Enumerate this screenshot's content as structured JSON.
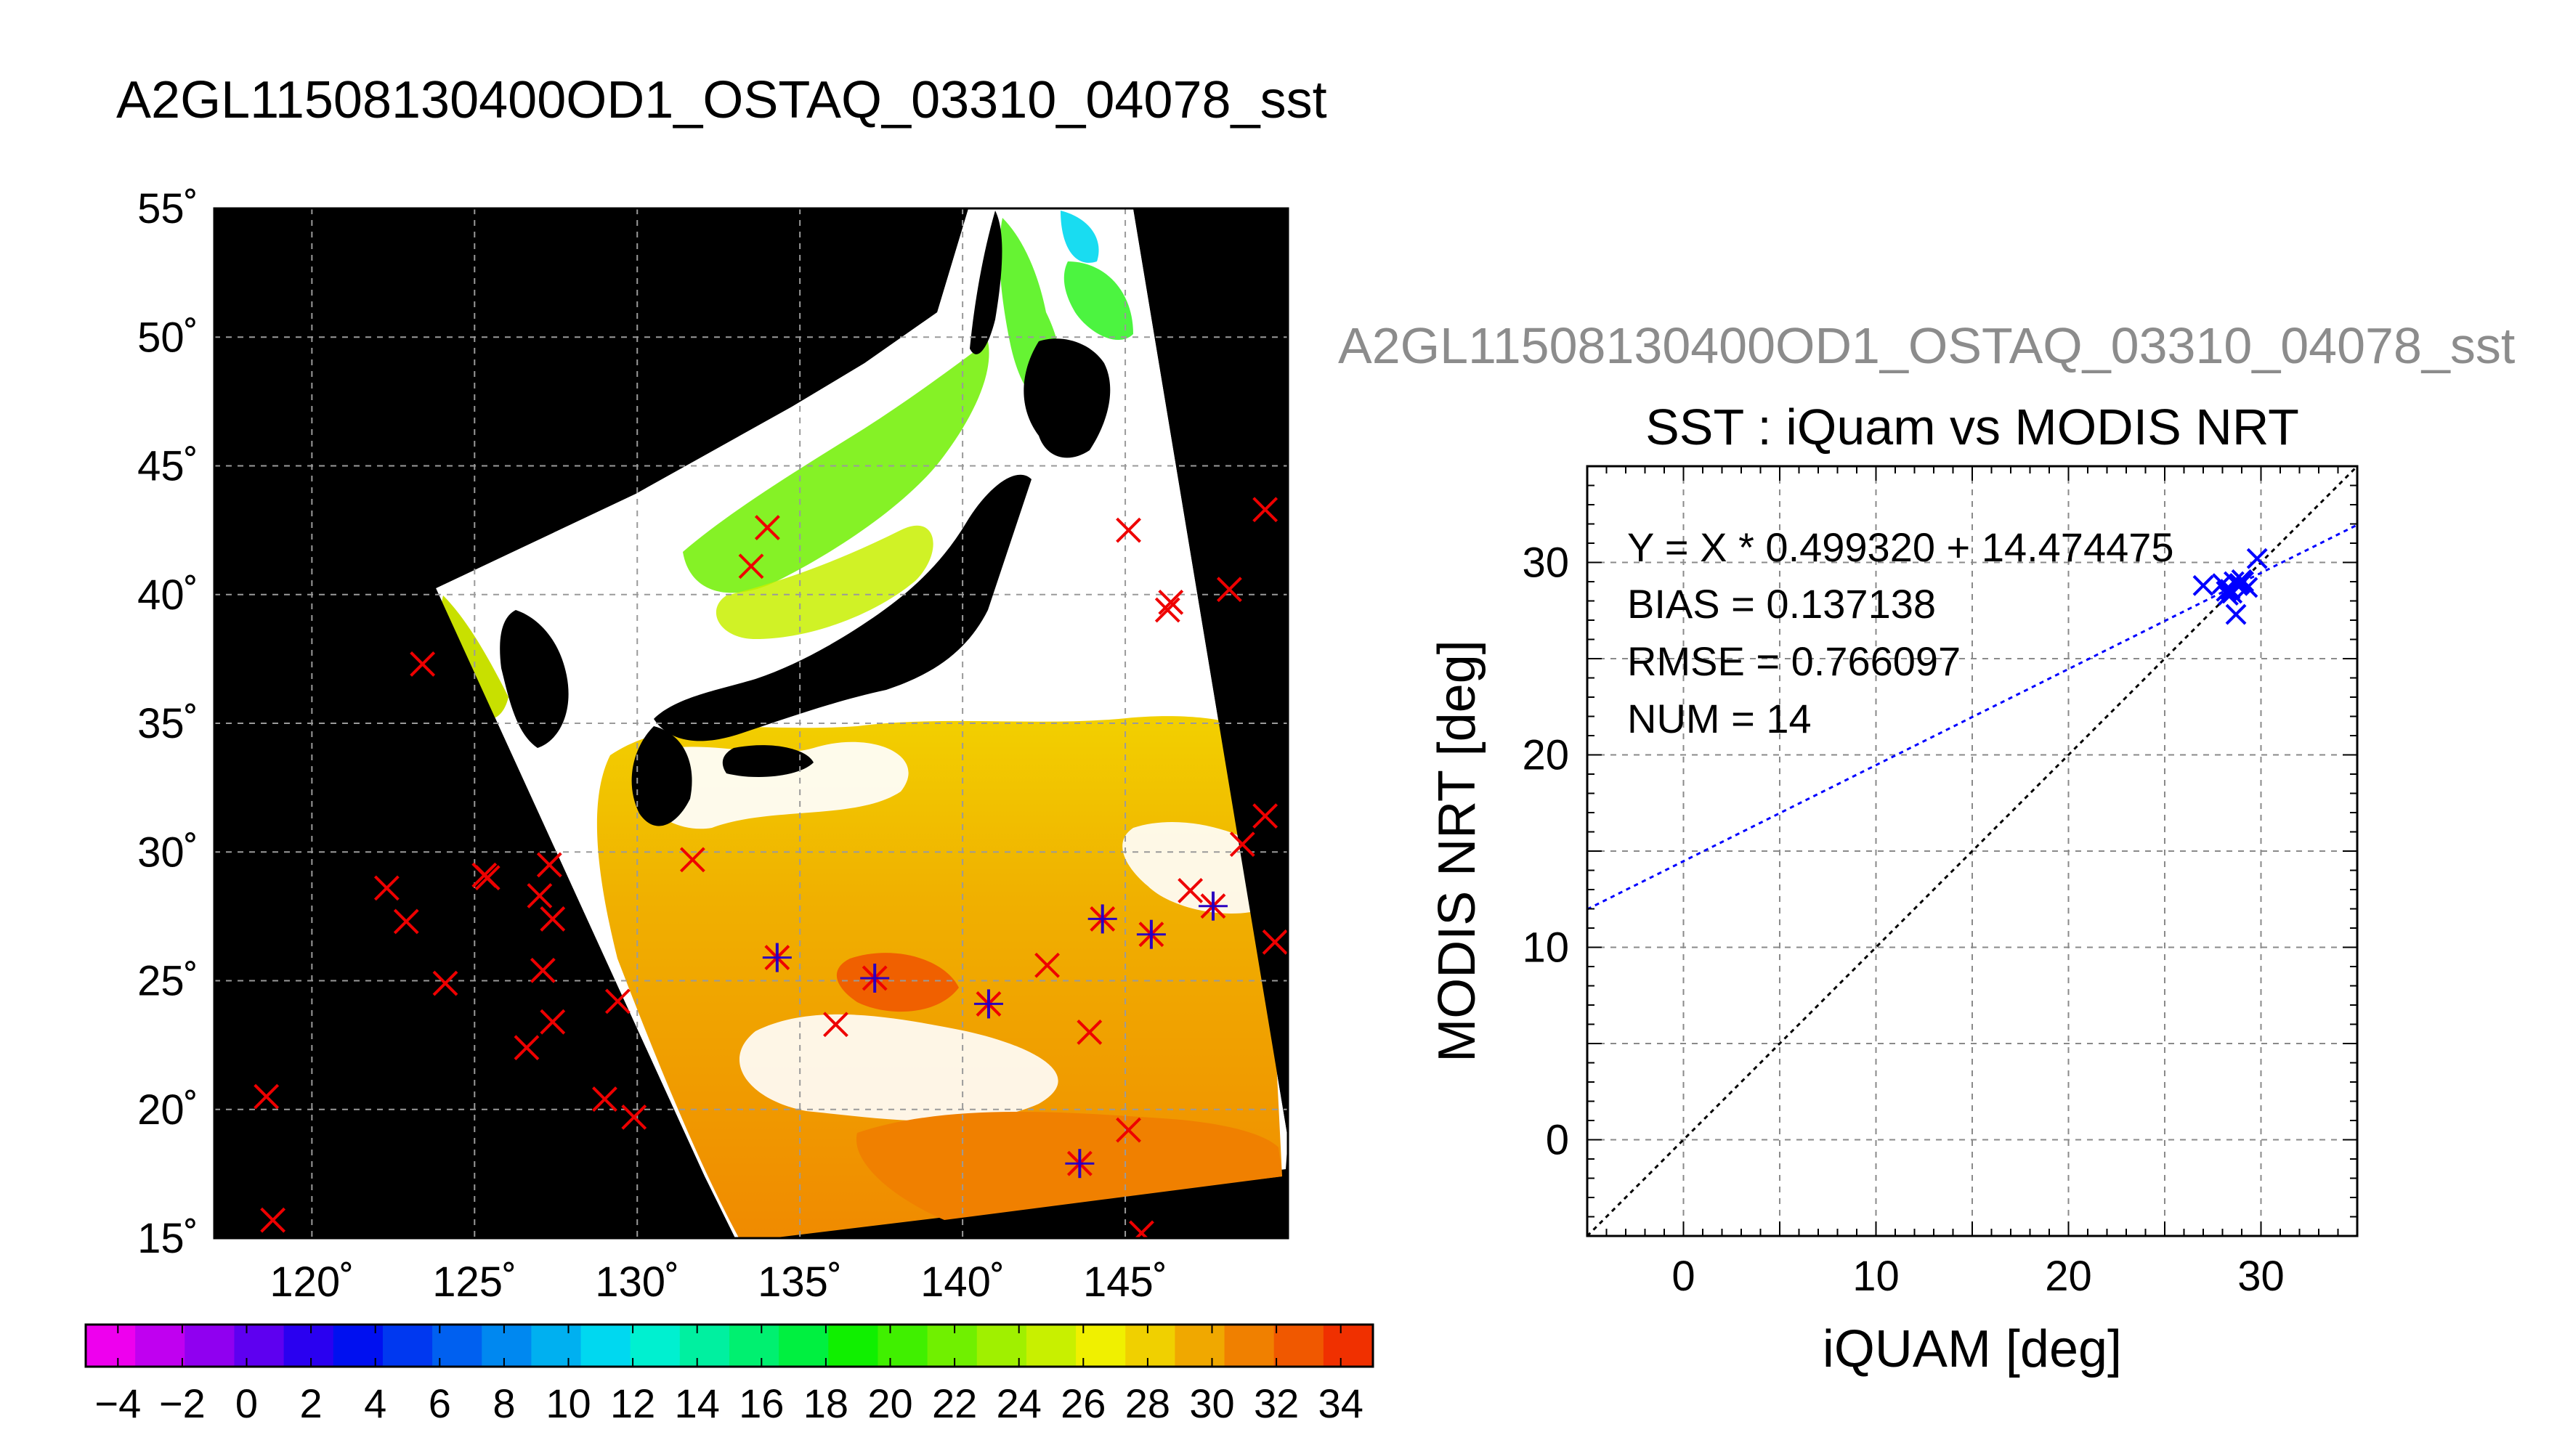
{
  "page": {
    "main_title": "A2GL11508130400OD1_OSTAQ_03310_04078_sst",
    "secondary_title": "A2GL11508130400OD1_OSTAQ_03310_04078_sst"
  },
  "chart_data": [
    {
      "type": "map",
      "title": "A2GL11508130400OD1_OSTAQ_03310_04078_sst",
      "lon_range": [
        117,
        150
      ],
      "lat_range": [
        15,
        55
      ],
      "lon_ticks": [
        "120˚",
        "125˚",
        "130˚",
        "135˚",
        "140˚",
        "145˚"
      ],
      "lat_ticks": [
        "55˚",
        "50˚",
        "45˚",
        "40˚",
        "35˚",
        "30˚",
        "25˚",
        "20˚",
        "15˚"
      ],
      "grid": true,
      "colorbar": {
        "range": [
          -5,
          35
        ],
        "tick_labels": [
          "−4",
          "−2",
          "0",
          "2",
          "4",
          "6",
          "8",
          "10",
          "12",
          "14",
          "16",
          "18",
          "20",
          "22",
          "24",
          "26",
          "28",
          "30",
          "32",
          "34"
        ],
        "colors": [
          "#ee00ee",
          "#c000f0",
          "#9000f0",
          "#5e00f0",
          "#2a00f0",
          "#0010f0",
          "#0038f0",
          "#0060f0",
          "#0088f0",
          "#00b0f0",
          "#00d8f0",
          "#00f0d0",
          "#00f0a0",
          "#00f070",
          "#00f040",
          "#10f000",
          "#40f000",
          "#70f000",
          "#a0f000",
          "#c8f000",
          "#f0f000",
          "#f0d000",
          "#f0a800",
          "#f08000",
          "#f05800",
          "#f03000"
        ]
      },
      "markers": {
        "red_x": [
          [
            118.6,
            20.5
          ],
          [
            118.8,
            15.7
          ],
          [
            122.3,
            28.6
          ],
          [
            122.9,
            27.3
          ],
          [
            123.4,
            37.3
          ],
          [
            124.1,
            24.9
          ],
          [
            125.3,
            29.1
          ],
          [
            125.4,
            29.0
          ],
          [
            126.6,
            22.4
          ],
          [
            127.0,
            28.3
          ],
          [
            127.1,
            25.4
          ],
          [
            127.3,
            29.5
          ],
          [
            127.4,
            27.4
          ],
          [
            127.4,
            23.4
          ],
          [
            129.0,
            20.4
          ],
          [
            129.4,
            24.2
          ],
          [
            129.9,
            19.7
          ],
          [
            131.7,
            29.7
          ],
          [
            133.5,
            41.1
          ],
          [
            134.0,
            42.6
          ],
          [
            136.1,
            23.3
          ],
          [
            142.6,
            25.6
          ],
          [
            143.9,
            23.0
          ],
          [
            145.1,
            19.2
          ],
          [
            145.1,
            42.5
          ],
          [
            146.3,
            39.4
          ],
          [
            146.4,
            39.7
          ],
          [
            147.0,
            28.5
          ],
          [
            148.2,
            40.2
          ],
          [
            148.6,
            30.3
          ],
          [
            149.3,
            43.3
          ],
          [
            149.3,
            31.4
          ],
          [
            149.6,
            26.5
          ],
          [
            145.5,
            15.2
          ]
        ],
        "blue_star": [
          [
            134.3,
            25.9
          ],
          [
            137.3,
            25.1
          ],
          [
            140.8,
            24.1
          ],
          [
            144.3,
            27.4
          ],
          [
            145.8,
            26.8
          ],
          [
            147.7,
            27.9
          ],
          [
            143.6,
            17.9
          ]
        ]
      }
    },
    {
      "type": "scatter",
      "title": "SST : iQuam vs MODIS NRT",
      "xlabel": "iQUAM [deg]",
      "ylabel": "MODIS NRT [deg]",
      "xlim": [
        -5,
        35
      ],
      "ylim": [
        -5,
        35
      ],
      "x_ticks": [
        0,
        10,
        20,
        30
      ],
      "y_ticks": [
        0,
        10,
        20,
        30
      ],
      "grid": true,
      "stats": [
        "Y = X * 0.499320 + 14.474475",
        "BIAS = 0.137138",
        "RMSE = 0.766097",
        "NUM = 14"
      ],
      "fit": {
        "slope": 0.49932,
        "intercept": 14.474475,
        "color": "#0000ff"
      },
      "identity_line_color": "#000000",
      "points": [
        [
          27.0,
          28.8
        ],
        [
          28.0,
          28.9
        ],
        [
          28.2,
          28.5
        ],
        [
          28.3,
          28.3
        ],
        [
          28.4,
          28.6
        ],
        [
          28.5,
          28.4
        ],
        [
          28.6,
          29.0
        ],
        [
          28.7,
          27.3
        ],
        [
          28.8,
          28.8
        ],
        [
          28.9,
          28.9
        ],
        [
          29.0,
          29.1
        ],
        [
          29.1,
          29.0
        ],
        [
          29.3,
          28.7
        ],
        [
          29.8,
          30.2
        ]
      ],
      "point_color": "#0000ff"
    }
  ]
}
